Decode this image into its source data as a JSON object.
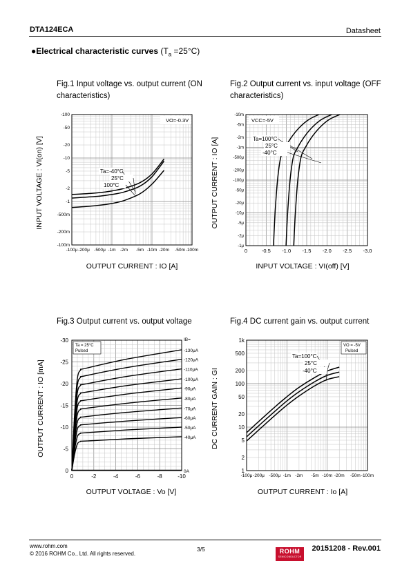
{
  "header": {
    "part": "DTA124ECA",
    "doc_type": "Datasheet"
  },
  "section": {
    "bullet": "●",
    "title": "Electrical characteristic curves",
    "cond_pre": " (T",
    "cond_sub": "a",
    "cond_post": " =25°C)"
  },
  "figures": {
    "fig1": {
      "caption_l1": "Fig.1 Input voltage vs. output current (ON",
      "caption_l2": "characteristics)"
    },
    "fig2": {
      "caption_l1": "Fig.2 Output current vs. input voltage (OFF",
      "caption_l2": "characteristics)"
    },
    "fig3": {
      "caption_l1": "Fig.3 Output current vs. output voltage"
    },
    "fig4": {
      "caption_l1": "Fig.4 DC current gain vs. output current"
    }
  },
  "chart_data": [
    {
      "id": "fig1",
      "type": "line",
      "x_scale": "log",
      "y_scale": "log",
      "xlabel": "OUTPUT CURRENT : IO [A]",
      "ylabel": "INPUT VOLTAGE : VI(on) [V]",
      "x_ticks": [
        "-100μ",
        "-200μ",
        "-500μ",
        "-1m",
        "-2m",
        "-5m",
        "-10m",
        "-20m",
        "-50m",
        "-100m"
      ],
      "y_ticks": [
        "-100m",
        "-200m",
        "-500m",
        "-1",
        "-2",
        "-5",
        "-10",
        "-20",
        "-50",
        "-100"
      ],
      "xlim": [
        -0.0001,
        -0.1
      ],
      "ylim": [
        -0.1,
        -100
      ],
      "condition": "VO=-0.3V",
      "series": [
        {
          "name": "Ta=-40°C",
          "x": [
            -0.0001,
            -0.0002,
            -0.0005,
            -0.001,
            -0.002,
            -0.005,
            -0.01,
            -0.02
          ],
          "y": [
            -1.45,
            -1.5,
            -1.6,
            -1.75,
            -2.0,
            -2.7,
            -4.3,
            -9.5
          ]
        },
        {
          "name": "25°C",
          "x": [
            -0.0001,
            -0.0002,
            -0.0005,
            -0.001,
            -0.002,
            -0.005,
            -0.01,
            -0.02
          ],
          "y": [
            -1.2,
            -1.25,
            -1.33,
            -1.45,
            -1.65,
            -2.25,
            -3.7,
            -8.5
          ]
        },
        {
          "name": "100°C",
          "x": [
            -0.0001,
            -0.0002,
            -0.0005,
            -0.001,
            -0.002,
            -0.005,
            -0.01,
            -0.02
          ],
          "y": [
            -0.73,
            -0.76,
            -0.82,
            -0.9,
            -1.05,
            -1.5,
            -2.5,
            -5.2
          ]
        }
      ]
    },
    {
      "id": "fig2",
      "type": "line",
      "x_scale": "linear",
      "y_scale": "log",
      "xlabel": "INPUT VOLTAGE : VI(off) [V]",
      "ylabel": "OUTPUT CURRENT : IO [A]",
      "x_ticks": [
        "0",
        "-0.5",
        "-1.0",
        "-1.5",
        "-2.0",
        "-2.5",
        "-3.0"
      ],
      "y_ticks": [
        "-1μ",
        "-2μ",
        "-5μ",
        "-10μ",
        "-20μ",
        "-50μ",
        "-100μ",
        "-200μ",
        "-500μ",
        "-1m",
        "-2m",
        "-5m",
        "-10m"
      ],
      "xlim": [
        0,
        -3.0
      ],
      "ylim": [
        -1e-06,
        -0.01
      ],
      "condition": "VCC=-5V",
      "series": [
        {
          "name": "Ta=100°C",
          "x": [
            -0.68,
            -0.72,
            -0.78,
            -0.86,
            -0.97,
            -1.12,
            -1.32,
            -1.55,
            -1.8
          ],
          "y": [
            -1e-06,
            -1e-05,
            -0.0001,
            -0.0005,
            -0.001,
            -0.002,
            -0.004,
            -0.007,
            -0.01
          ]
        },
        {
          "name": "25°C",
          "x": [
            -0.99,
            -1.03,
            -1.09,
            -1.17,
            -1.28,
            -1.43,
            -1.63,
            -1.86,
            -2.12
          ],
          "y": [
            -1e-06,
            -1e-05,
            -0.0001,
            -0.0005,
            -0.001,
            -0.002,
            -0.004,
            -0.007,
            -0.01
          ]
        },
        {
          "name": "-40°C",
          "x": [
            -1.18,
            -1.22,
            -1.28,
            -1.36,
            -1.47,
            -1.62,
            -1.82,
            -2.05,
            -2.32
          ],
          "y": [
            -1e-06,
            -1e-05,
            -0.0001,
            -0.0005,
            -0.001,
            -0.002,
            -0.004,
            -0.007,
            -0.01
          ]
        }
      ]
    },
    {
      "id": "fig3",
      "type": "line",
      "x_scale": "linear",
      "y_scale": "linear",
      "xlabel": "OUTPUT VOLTAGE : Vo [V]",
      "ylabel": "OUTPUT CURRENT : IO [mA]",
      "x_ticks": [
        "0",
        "-2",
        "-4",
        "-6",
        "-8",
        "-10"
      ],
      "y_ticks": [
        "0",
        "-5",
        "-10",
        "-15",
        "-20",
        "-25",
        "-30"
      ],
      "xlim": [
        0,
        -10
      ],
      "ylim": [
        0,
        -30
      ],
      "condition": "Ta = 25°C\nPulsed",
      "ib_header": "IB=",
      "series": [
        {
          "name": "-130μA",
          "sat": -23.5,
          "end": -27.8
        },
        {
          "name": "-120μA",
          "sat": -21.8,
          "end": -25.6
        },
        {
          "name": "-110μA",
          "sat": -19.9,
          "end": -23.4
        },
        {
          "name": "-100μA",
          "sat": -18.0,
          "end": -21.1
        },
        {
          "name": "-90μA",
          "sat": -16.2,
          "end": -19.0
        },
        {
          "name": "-80μA",
          "sat": -14.3,
          "end": -16.7
        },
        {
          "name": "-70μA",
          "sat": -12.4,
          "end": -14.4
        },
        {
          "name": "-60μA",
          "sat": -10.6,
          "end": -12.2
        },
        {
          "name": "-50μA",
          "sat": -8.7,
          "end": -10.0
        },
        {
          "name": "-40μA",
          "sat": -6.8,
          "end": -7.8
        },
        {
          "name": "0A",
          "sat": 0,
          "end": 0
        }
      ]
    },
    {
      "id": "fig4",
      "type": "line",
      "x_scale": "log",
      "y_scale": "log",
      "xlabel": "OUTPUT CURRENT : Io [A]",
      "ylabel": "DC CURRENT GAIN : GI",
      "x_ticks": [
        "-100μ",
        "-200μ",
        "-500μ",
        "-1m",
        "-2m",
        "-5m",
        "-10m",
        "-20m",
        "-50m",
        "-100m"
      ],
      "y_ticks": [
        "1",
        "2",
        "5",
        "10",
        "20",
        "50",
        "100",
        "200",
        "500",
        "1k"
      ],
      "xlim": [
        -0.0001,
        -0.1
      ],
      "ylim": [
        1,
        1000
      ],
      "condition": "VO = -5V\nPulsed",
      "series": [
        {
          "name": "Ta=100°C",
          "x": [
            -0.0001,
            -0.0002,
            -0.0005,
            -0.001,
            -0.002,
            -0.005,
            -0.01,
            -0.02
          ],
          "y": [
            7.5,
            13.5,
            29,
            50,
            82,
            140,
            195,
            240
          ]
        },
        {
          "name": "25°C",
          "x": [
            -0.0001,
            -0.0002,
            -0.0005,
            -0.001,
            -0.002,
            -0.005,
            -0.01,
            -0.02
          ],
          "y": [
            6.0,
            10.8,
            23,
            40,
            65,
            112,
            155,
            185
          ]
        },
        {
          "name": "-40°C",
          "x": [
            -0.0001,
            -0.0002,
            -0.0005,
            -0.001,
            -0.002,
            -0.005,
            -0.01,
            -0.02
          ],
          "y": [
            4.8,
            8.6,
            18.5,
            32,
            52,
            90,
            124,
            145
          ]
        }
      ]
    }
  ],
  "footer": {
    "url": "www.rohm.com",
    "copyright": "© 2016 ROHM Co., Ltd. All rights reserved.",
    "page": "3/5",
    "revision": "20151208 - Rev.001",
    "logo_text": "ROHM",
    "logo_sub": "SEMICONDUCTOR"
  }
}
